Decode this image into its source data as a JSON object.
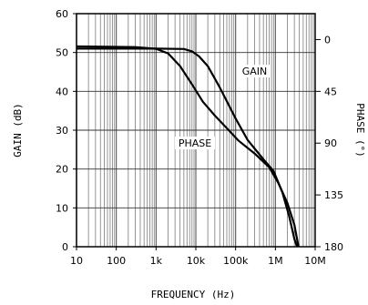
{
  "chart_data": {
    "type": "line",
    "x_scale": "log",
    "xlim": [
      10,
      10000000
    ],
    "ylim": [
      0,
      60
    ],
    "y2lim": [
      -22.5,
      180
    ],
    "y2_inverted": true,
    "grid": true,
    "xlabel": "FREQUENCY (Hz)",
    "ylabel": "GAIN (dB)",
    "y2label": "PHASE (°)",
    "x_ticks": [
      10,
      100,
      1000,
      10000,
      100000,
      1000000,
      10000000
    ],
    "x_tick_labels": [
      "10",
      "100",
      "1k",
      "10k",
      "100k",
      "1M",
      "10M"
    ],
    "y_ticks": [
      0,
      10,
      20,
      30,
      40,
      50,
      60
    ],
    "y_tick_labels": [
      "0",
      "10",
      "20",
      "30",
      "40",
      "50",
      "60"
    ],
    "y2_ticks": [
      0,
      45,
      90,
      135,
      180
    ],
    "y2_tick_labels": [
      "0",
      "45",
      "90",
      "135",
      "180"
    ],
    "series": [
      {
        "name": "GAIN",
        "axis": "left",
        "points": [
          [
            10,
            51
          ],
          [
            1000,
            51
          ],
          [
            5000,
            50.9
          ],
          [
            8000,
            50.3
          ],
          [
            12000,
            49
          ],
          [
            20000,
            46.5
          ],
          [
            40000,
            41
          ],
          [
            100000,
            33
          ],
          [
            200000,
            27.5
          ],
          [
            500000,
            22.5
          ],
          [
            900000,
            19.5
          ],
          [
            1500000,
            14
          ],
          [
            2200000,
            8
          ],
          [
            3000000,
            2
          ],
          [
            3500000,
            0
          ]
        ]
      },
      {
        "name": "PHASE",
        "axis": "right",
        "points": [
          [
            10,
            6
          ],
          [
            300,
            6.5
          ],
          [
            1000,
            8
          ],
          [
            2000,
            12
          ],
          [
            4000,
            23
          ],
          [
            8000,
            39
          ],
          [
            15000,
            54
          ],
          [
            30000,
            66
          ],
          [
            60000,
            77
          ],
          [
            120000,
            88
          ],
          [
            300000,
            99
          ],
          [
            700000,
            111
          ],
          [
            1200000,
            125
          ],
          [
            2000000,
            142
          ],
          [
            3000000,
            161
          ],
          [
            3800000,
            180
          ]
        ]
      }
    ],
    "annotations": [
      {
        "text": "GAIN",
        "x": 300000,
        "y": 44.5
      },
      {
        "text": "PHASE",
        "x": 9500,
        "y": 26
      }
    ]
  }
}
